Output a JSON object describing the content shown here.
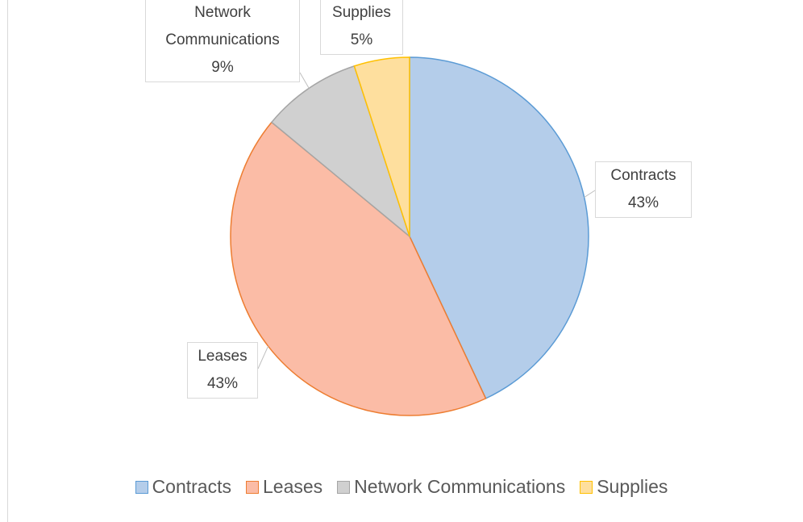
{
  "chart_data": {
    "type": "pie",
    "categories": [
      "Contracts",
      "Leases",
      "Network Communications",
      "Supplies"
    ],
    "values": [
      43,
      43,
      9,
      5
    ],
    "value_labels": [
      "43%",
      "43%",
      "9%",
      "5%"
    ],
    "colors": [
      "#b4cdea",
      "#fbbca6",
      "#d0d0d0",
      "#fedf9e"
    ],
    "edge_colors": [
      "#5b9bd5",
      "#ed7d31",
      "#a5a5a5",
      "#ffc000"
    ],
    "legend": "bottom"
  }
}
